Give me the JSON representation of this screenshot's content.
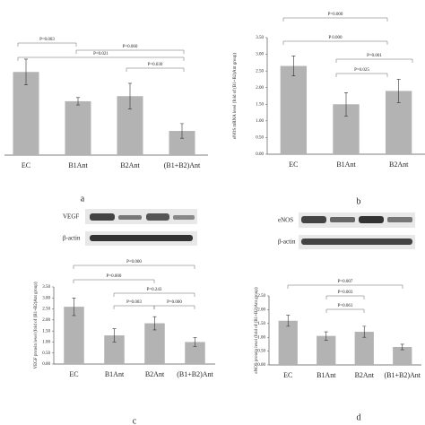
{
  "chart_data": [
    {
      "type": "bar",
      "panel_label": "a",
      "categories": [
        "EC",
        "B1Ant",
        "B2Ant",
        "(B1+B2)Ant"
      ],
      "values": [
        2.27,
        1.47,
        1.61,
        0.66
      ],
      "errors": [
        0.35,
        0.1,
        0.35,
        0.2
      ],
      "ylim": [
        0,
        3.5
      ],
      "color": "#b3b3b3",
      "annotations": [
        "P=0.003",
        "P=0.021",
        "P=0.060",
        "P=0.030"
      ]
    },
    {
      "type": "bar",
      "panel_label": "b",
      "y_label": "eNOS mRNA level (fold of (B1+B2)Ant group)",
      "categories": [
        "EC",
        "B1Ant",
        "B2Ant"
      ],
      "values": [
        2.65,
        1.5,
        1.9
      ],
      "errors": [
        0.3,
        0.35,
        0.35
      ],
      "ylim": [
        0,
        3.5
      ],
      "yticks": [
        {
          "value": 0,
          "label": "0.00"
        },
        {
          "value": 0.5,
          "label": "0.50"
        },
        {
          "value": 1,
          "label": "1.00"
        },
        {
          "value": 1.5,
          "label": "1.50"
        },
        {
          "value": 2,
          "label": "2.00"
        },
        {
          "value": 2.5,
          "label": "2.50"
        },
        {
          "value": 3,
          "label": "3.00"
        },
        {
          "value": 3.5,
          "label": "3.50"
        }
      ],
      "color": "#b3b3b3",
      "annotations": [
        "P 0.000",
        "P=0.000",
        "P=0.001",
        "P=0.025"
      ]
    },
    {
      "type": "bar",
      "panel_label": "c",
      "y_label": "VEGF protein level (fold of (B1+B2)Ant group)",
      "blot_labels": [
        "VEGF",
        "β-actin"
      ],
      "categories": [
        "EC",
        "B1Ant",
        "B2Ant",
        "(B1+B2)Ant"
      ],
      "values": [
        2.6,
        1.3,
        1.85,
        1.0
      ],
      "errors": [
        0.4,
        0.3,
        0.3,
        0.2
      ],
      "ylim": [
        0,
        3.5
      ],
      "yticks": [
        {
          "value": 0,
          "label": "0.00"
        },
        {
          "value": 0.5,
          "label": "0.50"
        },
        {
          "value": 1,
          "label": "1.00"
        },
        {
          "value": 1.5,
          "label": "1.50"
        },
        {
          "value": 2,
          "label": "2.00"
        },
        {
          "value": 2.5,
          "label": "2.50"
        },
        {
          "value": 3,
          "label": "3.00"
        },
        {
          "value": 3.5,
          "label": "3.50"
        }
      ],
      "color": "#b3b3b3",
      "annotations": [
        "P=0.000",
        "P=0.000",
        "P=0.243",
        "P=0.003",
        "P=0.000"
      ]
    },
    {
      "type": "bar",
      "panel_label": "d",
      "y_label": "eNOS protein level (fold of (B1+B2)Ant group)",
      "blot_labels": [
        "eNOS",
        "β-actin"
      ],
      "categories": [
        "EC",
        "B1Ant",
        "B2Ant",
        "(B1+B2)Ant"
      ],
      "values": [
        1.6,
        1.05,
        1.2,
        0.65
      ],
      "errors": [
        0.2,
        0.15,
        0.2,
        0.1
      ],
      "ylim": [
        0,
        2.5
      ],
      "yticks": [
        {
          "value": 0,
          "label": "0.00"
        },
        {
          "value": 0.5,
          "label": "0.50"
        },
        {
          "value": 1,
          "label": "1.00"
        },
        {
          "value": 1.5,
          "label": "1.50"
        },
        {
          "value": 2,
          "label": "2.00"
        },
        {
          "value": 2.5,
          "label": "2.50"
        }
      ],
      "color": "#b3b3b3",
      "annotations": [
        "P=0.007",
        "P=0.003",
        "P=0.061"
      ]
    }
  ]
}
